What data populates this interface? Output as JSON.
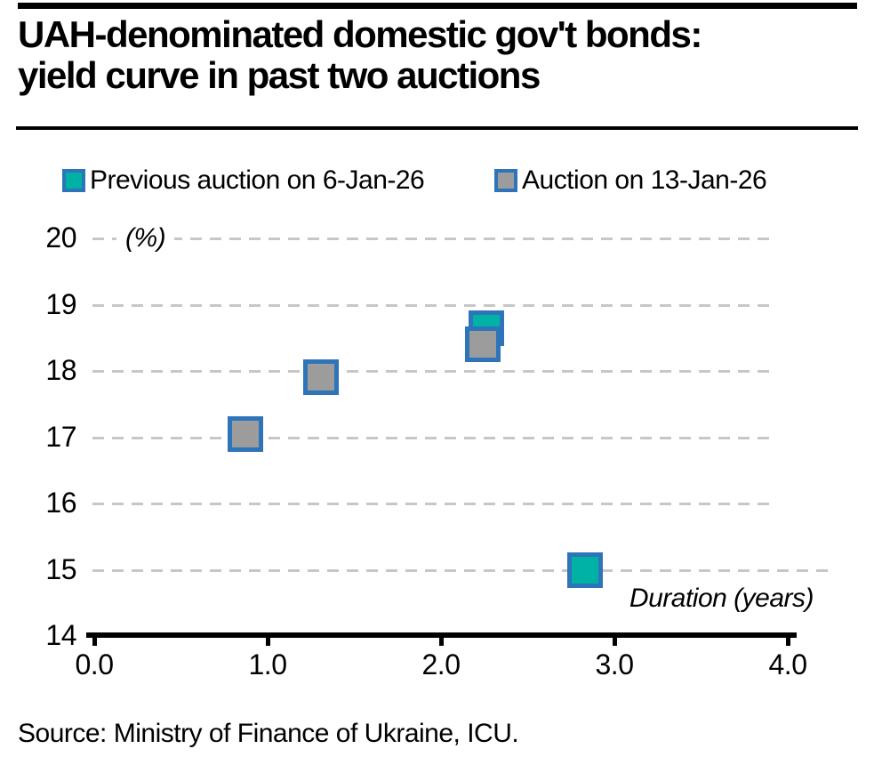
{
  "header": {
    "title_line1": "UAH-denominated domestic gov't bonds:",
    "title_line2": "yield curve in past two auctions"
  },
  "footer": {
    "source": "Source: Ministry of Finance of Ukraine, ICU."
  },
  "colors": {
    "teal_fill": "#00B2A6",
    "gray_fill": "#9C9C9C",
    "marker_border_blue": "#2E74B8",
    "gridline_gray": "#C7C7C7",
    "text_black": "#000000"
  },
  "chart_data": {
    "type": "scatter",
    "title": "UAH-denominated domestic gov't bonds: yield curve in past two auctions",
    "xlabel": "Duration (years)",
    "ylabel": "(%)",
    "xlim": [
      0.0,
      4.0
    ],
    "ylim": [
      14,
      20
    ],
    "x_ticks": [
      0.0,
      1.0,
      2.0,
      3.0,
      4.0
    ],
    "x_tick_labels": [
      "0.0",
      "1.0",
      "2.0",
      "3.0",
      "4.0"
    ],
    "y_ticks": [
      14,
      15,
      16,
      17,
      18,
      19,
      20
    ],
    "y_tick_labels": [
      "14",
      "15",
      "16",
      "17",
      "18",
      "19",
      "20"
    ],
    "grid": "horizontal-dashed",
    "legend_position": "top",
    "series": [
      {
        "name": "Previous auction on 6-Jan-26",
        "marker": "square",
        "fill": "#00B2A6",
        "border": "#2E74B8",
        "points": [
          {
            "x": 2.26,
            "y": 18.65
          },
          {
            "x": 2.83,
            "y": 15.0
          }
        ]
      },
      {
        "name": "Auction on 13-Jan-26",
        "marker": "square",
        "fill": "#9C9C9C",
        "border": "#2E74B8",
        "points": [
          {
            "x": 0.87,
            "y": 17.05
          },
          {
            "x": 1.31,
            "y": 17.9
          },
          {
            "x": 2.24,
            "y": 18.4
          }
        ]
      }
    ]
  }
}
